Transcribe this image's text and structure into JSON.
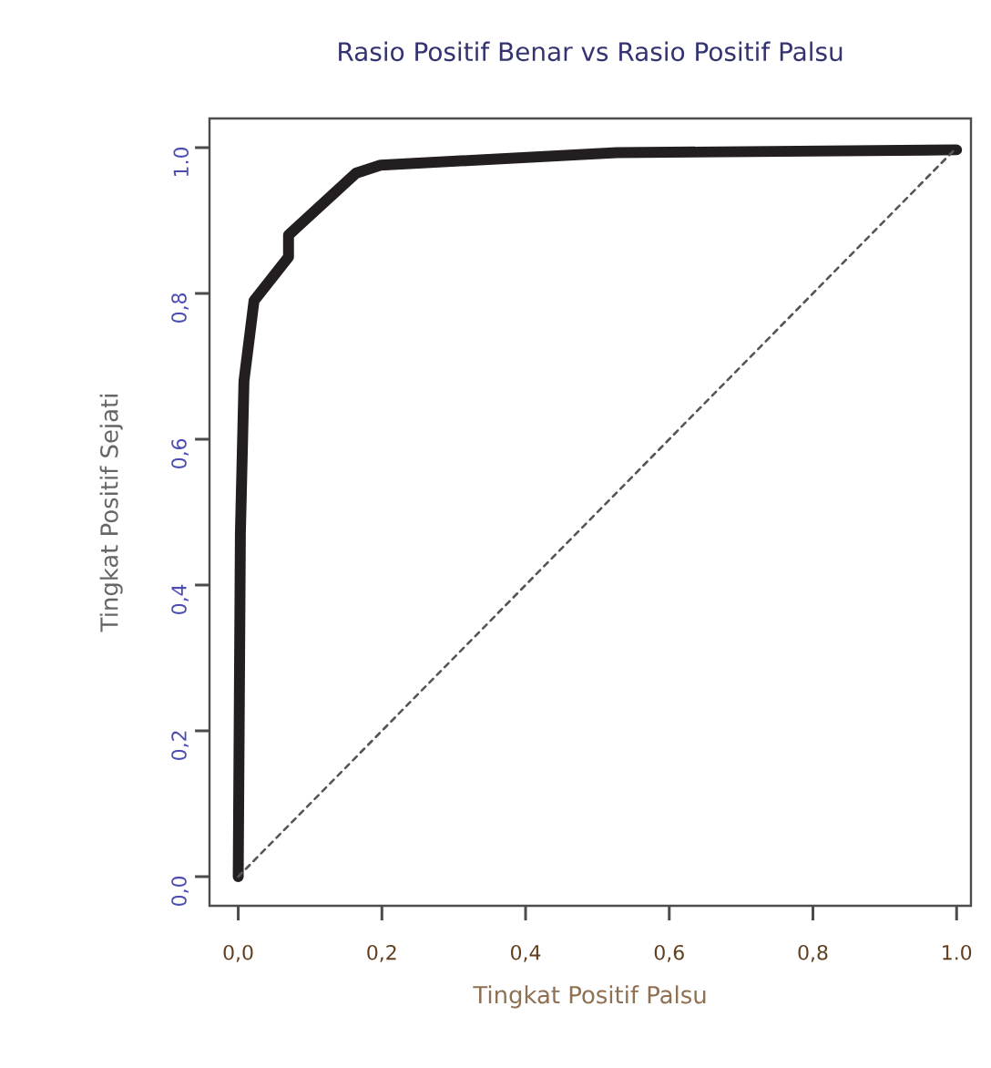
{
  "chart_data": {
    "type": "line",
    "title": "Rasio Positif Benar vs Rasio Positif Palsu",
    "xlabel": "Tingkat Positif Palsu",
    "ylabel": "Tingkat Positif Sejati",
    "xlim": [
      -0.04,
      1.02
    ],
    "ylim": [
      -0.04,
      1.04
    ],
    "xticks": [
      {
        "value": 0,
        "label": "0,0"
      },
      {
        "value": 0.2,
        "label": "0,2"
      },
      {
        "value": 0.4,
        "label": "0,4"
      },
      {
        "value": 0.6,
        "label": "0,6"
      },
      {
        "value": 0.8,
        "label": "0,8"
      },
      {
        "value": 1.0,
        "label": "1.0"
      }
    ],
    "yticks": [
      {
        "value": 0,
        "label": "0,0"
      },
      {
        "value": 0.2,
        "label": "0,2"
      },
      {
        "value": 0.4,
        "label": "0,4"
      },
      {
        "value": 0.6,
        "label": "0,6"
      },
      {
        "value": 0.8,
        "label": "0,8"
      },
      {
        "value": 1.0,
        "label": "1.0"
      }
    ],
    "marker": "none",
    "series": [
      {
        "color": "#231f20",
        "line_style": "solid",
        "x": [
          0,
          0.003,
          0.008,
          0.022,
          0.054,
          0.07,
          0.07,
          0.164,
          0.198,
          0.527,
          1.0
        ],
        "values": [
          0,
          0.47,
          0.68,
          0.79,
          0.83,
          0.85,
          0.88,
          0.965,
          0.976,
          0.993,
          0.997
        ]
      },
      {
        "color": "#555555",
        "line_style": "dashed",
        "x": [
          0,
          1
        ],
        "values": [
          0,
          1
        ]
      }
    ]
  }
}
